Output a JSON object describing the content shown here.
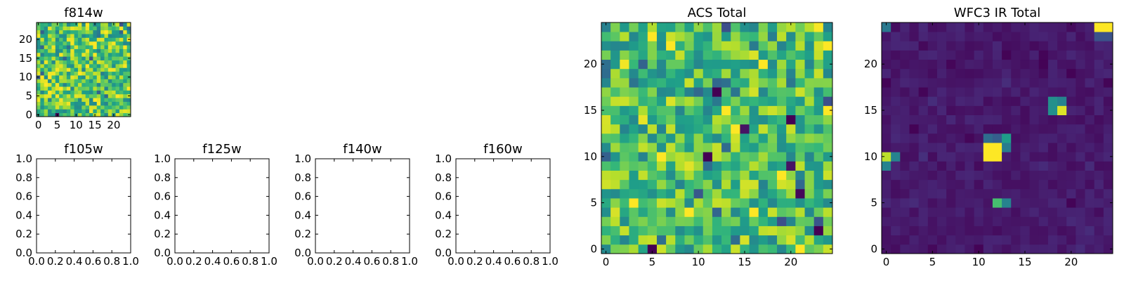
{
  "chart_data": [
    {
      "title": "f814w",
      "type": "heatmap",
      "colormap": "viridis",
      "size": 25,
      "xlim": [
        -0.5,
        24.5
      ],
      "ylim": [
        -0.5,
        24.5
      ],
      "xticks": [
        0,
        5,
        10,
        15,
        20
      ],
      "yticks": [
        0,
        5,
        10,
        15,
        20
      ],
      "xtick_labels": [
        "0",
        "5",
        "10",
        "15",
        "20"
      ],
      "ytick_labels": [
        "0",
        "5",
        "10",
        "15",
        "20"
      ],
      "base_level": 0.72,
      "noise_amplitude": 0.45,
      "seed": 11,
      "hotspots": [
        {
          "x": 5,
          "y": 0,
          "value": 0.0
        }
      ]
    },
    {
      "title": "f105w",
      "type": "heatmap",
      "empty": true,
      "xlim": [
        0,
        1
      ],
      "ylim": [
        0,
        1
      ],
      "xticks": [
        0,
        0.2,
        0.4,
        0.6,
        0.8,
        1.0
      ],
      "yticks": [
        0,
        0.2,
        0.4,
        0.6,
        0.8,
        1.0
      ],
      "xtick_labels": [
        "0.0",
        "0.2",
        "0.4",
        "0.6",
        "0.8",
        "1.0"
      ],
      "ytick_labels": [
        "0.0",
        "0.2",
        "0.4",
        "0.6",
        "0.8",
        "1.0"
      ]
    },
    {
      "title": "f125w",
      "type": "heatmap",
      "empty": true,
      "xlim": [
        0,
        1
      ],
      "ylim": [
        0,
        1
      ],
      "xticks": [
        0,
        0.2,
        0.4,
        0.6,
        0.8,
        1.0
      ],
      "yticks": [
        0,
        0.2,
        0.4,
        0.6,
        0.8,
        1.0
      ],
      "xtick_labels": [
        "0.0",
        "0.2",
        "0.4",
        "0.6",
        "0.8",
        "1.0"
      ],
      "ytick_labels": [
        "0.0",
        "0.2",
        "0.4",
        "0.6",
        "0.8",
        "1.0"
      ]
    },
    {
      "title": "f140w",
      "type": "heatmap",
      "empty": true,
      "xlim": [
        0,
        1
      ],
      "ylim": [
        0,
        1
      ],
      "xticks": [
        0,
        0.2,
        0.4,
        0.6,
        0.8,
        1.0
      ],
      "yticks": [
        0,
        0.2,
        0.4,
        0.6,
        0.8,
        1.0
      ],
      "xtick_labels": [
        "0.0",
        "0.2",
        "0.4",
        "0.6",
        "0.8",
        "1.0"
      ],
      "ytick_labels": [
        "0.0",
        "0.2",
        "0.4",
        "0.6",
        "0.8",
        "1.0"
      ]
    },
    {
      "title": "f160w",
      "type": "heatmap",
      "empty": true,
      "xlim": [
        0,
        1
      ],
      "ylim": [
        0,
        1
      ],
      "xticks": [
        0,
        0.2,
        0.4,
        0.6,
        0.8,
        1.0
      ],
      "yticks": [
        0,
        0.2,
        0.4,
        0.6,
        0.8,
        1.0
      ],
      "xtick_labels": [
        "0.0",
        "0.2",
        "0.4",
        "0.6",
        "0.8",
        "1.0"
      ],
      "ytick_labels": [
        "0.0",
        "0.2",
        "0.4",
        "0.6",
        "0.8",
        "1.0"
      ]
    },
    {
      "title": "ACS Total",
      "type": "heatmap",
      "colormap": "viridis",
      "size": 25,
      "xlim": [
        -0.5,
        24.5
      ],
      "ylim": [
        -0.5,
        24.5
      ],
      "xticks": [
        0,
        5,
        10,
        15,
        20
      ],
      "yticks": [
        0,
        5,
        10,
        15,
        20
      ],
      "xtick_labels": [
        "0",
        "5",
        "10",
        "15",
        "20"
      ],
      "ytick_labels": [
        "0",
        "5",
        "10",
        "15",
        "20"
      ],
      "base_level": 0.7,
      "noise_amplitude": 0.42,
      "seed": 29,
      "hotspots": [
        {
          "x": 12,
          "y": 17,
          "value": 0.0
        },
        {
          "x": 11,
          "y": 10,
          "value": 0.0
        },
        {
          "x": 20,
          "y": 14,
          "value": 0.0
        },
        {
          "x": 5,
          "y": 0,
          "value": 0.0
        },
        {
          "x": 23,
          "y": 2,
          "value": 0.0
        },
        {
          "x": 21,
          "y": 6,
          "value": 0.02
        },
        {
          "x": 15,
          "y": 13,
          "value": 0.05
        },
        {
          "x": 20,
          "y": 9,
          "value": 0.05
        }
      ]
    },
    {
      "title": "WFC3 IR Total",
      "type": "heatmap",
      "colormap": "viridis",
      "size": 25,
      "xlim": [
        -0.5,
        24.5
      ],
      "ylim": [
        -0.5,
        24.5
      ],
      "xticks": [
        0,
        5,
        10,
        15,
        20
      ],
      "yticks": [
        0,
        5,
        10,
        15,
        20
      ],
      "xtick_labels": [
        "0",
        "5",
        "10",
        "15",
        "20"
      ],
      "ytick_labels": [
        "0",
        "5",
        "10",
        "15",
        "20"
      ],
      "base_level": 0.07,
      "noise_amplitude": 0.06,
      "seed": 47,
      "hotspots": [
        {
          "x": 11,
          "y": 11,
          "value": 1.0
        },
        {
          "x": 12,
          "y": 11,
          "value": 1.0
        },
        {
          "x": 11,
          "y": 10,
          "value": 1.0
        },
        {
          "x": 12,
          "y": 10,
          "value": 1.0
        },
        {
          "x": 13,
          "y": 11,
          "value": 0.42
        },
        {
          "x": 11,
          "y": 12,
          "value": 0.35
        },
        {
          "x": 12,
          "y": 12,
          "value": 0.3
        },
        {
          "x": 13,
          "y": 12,
          "value": 0.55
        },
        {
          "x": 18,
          "y": 15,
          "value": 0.5
        },
        {
          "x": 19,
          "y": 15,
          "value": 0.95
        },
        {
          "x": 18,
          "y": 16,
          "value": 0.5
        },
        {
          "x": 19,
          "y": 16,
          "value": 0.45
        },
        {
          "x": 0,
          "y": 10,
          "value": 0.9
        },
        {
          "x": 1,
          "y": 10,
          "value": 0.45
        },
        {
          "x": 0,
          "y": 9,
          "value": 0.45
        },
        {
          "x": 12,
          "y": 5,
          "value": 0.7
        },
        {
          "x": 13,
          "y": 5,
          "value": 0.45
        },
        {
          "x": 23,
          "y": 24,
          "value": 1.0
        },
        {
          "x": 24,
          "y": 24,
          "value": 1.0
        },
        {
          "x": 23,
          "y": 23,
          "value": 0.25
        },
        {
          "x": 24,
          "y": 23,
          "value": 0.25
        },
        {
          "x": 0,
          "y": 24,
          "value": 0.4
        }
      ]
    }
  ]
}
